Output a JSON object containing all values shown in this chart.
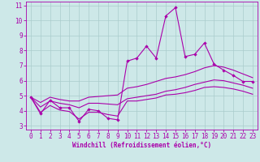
{
  "xlabel": "Windchill (Refroidissement éolien,°C)",
  "xlim": [
    -0.5,
    23.5
  ],
  "ylim": [
    2.75,
    11.25
  ],
  "yticks": [
    3,
    4,
    5,
    6,
    7,
    8,
    9,
    10,
    11
  ],
  "xticks": [
    0,
    1,
    2,
    3,
    4,
    5,
    6,
    7,
    8,
    9,
    10,
    11,
    12,
    13,
    14,
    15,
    16,
    17,
    18,
    19,
    20,
    21,
    22,
    23
  ],
  "background_color": "#cde8e8",
  "grid_color": "#aacccc",
  "line_color": "#aa00aa",
  "hours": [
    0,
    1,
    2,
    3,
    4,
    5,
    6,
    7,
    8,
    9,
    10,
    11,
    12,
    13,
    14,
    15,
    16,
    17,
    18,
    19,
    20,
    21,
    22,
    23
  ],
  "line_main": [
    4.9,
    3.8,
    4.7,
    4.2,
    4.2,
    3.3,
    4.1,
    4.0,
    3.5,
    3.4,
    7.3,
    7.5,
    8.3,
    7.5,
    10.3,
    10.85,
    7.6,
    7.75,
    8.5,
    7.1,
    6.7,
    6.35,
    5.95,
    5.95
  ],
  "line_upper": [
    4.9,
    4.55,
    4.9,
    4.75,
    4.65,
    4.65,
    4.9,
    4.95,
    5.0,
    5.05,
    5.5,
    5.6,
    5.75,
    5.95,
    6.15,
    6.25,
    6.4,
    6.6,
    6.85,
    7.0,
    6.9,
    6.7,
    6.45,
    6.2
  ],
  "line_lower": [
    4.9,
    4.25,
    4.65,
    4.5,
    4.4,
    4.2,
    4.5,
    4.5,
    4.45,
    4.4,
    4.8,
    4.9,
    5.0,
    5.1,
    5.3,
    5.4,
    5.55,
    5.75,
    5.9,
    6.05,
    6.0,
    5.85,
    5.7,
    5.5
  ],
  "line_bottom": [
    4.9,
    3.9,
    4.35,
    4.05,
    3.95,
    3.45,
    3.9,
    3.9,
    3.75,
    3.65,
    4.65,
    4.65,
    4.75,
    4.85,
    5.05,
    5.1,
    5.2,
    5.35,
    5.55,
    5.6,
    5.55,
    5.45,
    5.3,
    5.1
  ],
  "marker_size": 2.2,
  "linewidth": 0.8,
  "tick_fontsize": 5.5,
  "xlabel_fontsize": 5.5
}
